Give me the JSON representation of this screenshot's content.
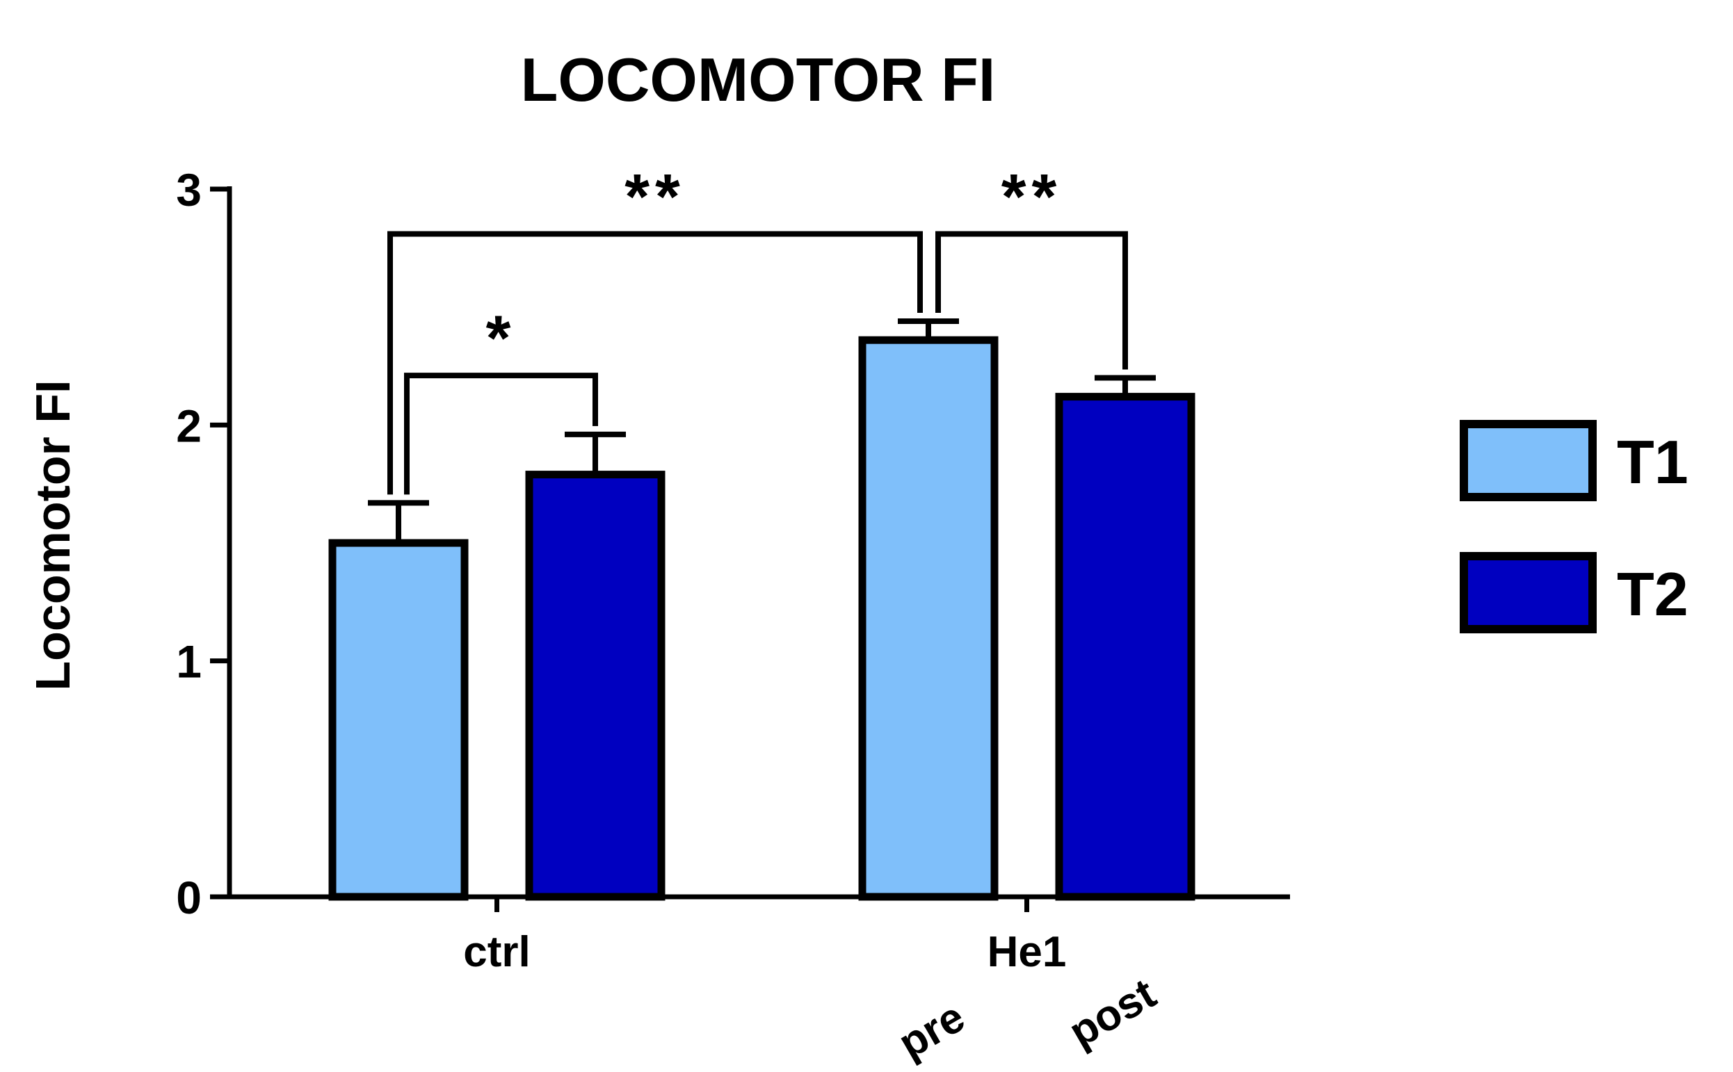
{
  "chart_data": {
    "type": "bar",
    "title": "LOCOMOTOR FI",
    "ylabel": "Locomotor FI",
    "xlabel": "",
    "ylim": [
      0,
      3
    ],
    "yticks": [
      "0",
      "1",
      "2",
      "3"
    ],
    "grid": false,
    "categories": [
      "ctrl",
      "He1"
    ],
    "sublabels": [
      "pre",
      "post"
    ],
    "series": [
      {
        "name": "T1",
        "color": "#7fbffa",
        "values": [
          1.5,
          2.36
        ],
        "errors": [
          0.17,
          0.08
        ]
      },
      {
        "name": "T2",
        "color": "#0000c0",
        "values": [
          1.79,
          2.12
        ],
        "errors": [
          0.17,
          0.08
        ]
      }
    ],
    "legend": {
      "position": "right"
    },
    "annotations": [
      {
        "label": "*",
        "from": "ctrl T1",
        "to": "ctrl T2",
        "level": 2.21
      },
      {
        "label": "**",
        "from": "ctrl T1",
        "to": "He1 T1",
        "level": 2.81
      },
      {
        "label": "**",
        "from": "He1 T1",
        "to": "He1 T2",
        "level": 2.81
      }
    ]
  }
}
